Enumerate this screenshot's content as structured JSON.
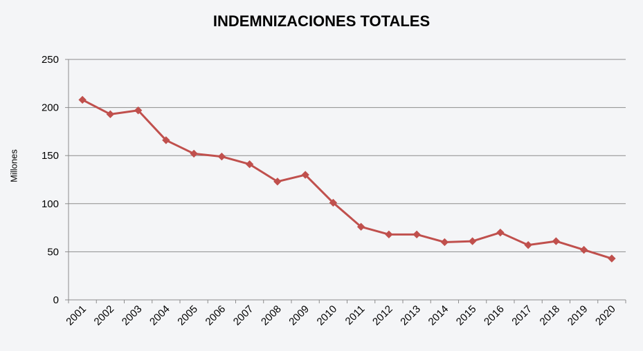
{
  "chart_data": {
    "type": "line",
    "title": "INDEMNIZACIONES TOTALES",
    "xlabel": "",
    "ylabel": "Millones",
    "ylim": [
      0,
      250
    ],
    "yticks": [
      0,
      50,
      100,
      150,
      200,
      250
    ],
    "grid": true,
    "legend": "none",
    "categories": [
      "2001",
      "2002",
      "2003",
      "2004",
      "2005",
      "2006",
      "2007",
      "2008",
      "2009",
      "2010",
      "2011",
      "2012",
      "2013",
      "2014",
      "2015",
      "2016",
      "2017",
      "2018",
      "2019",
      "2020"
    ],
    "series": [
      {
        "values": [
          208,
          193,
          197,
          166,
          152,
          149,
          141,
          123,
          130,
          101,
          76,
          68,
          68,
          60,
          61,
          70,
          57,
          61,
          52,
          43
        ],
        "color": "#c0504d",
        "marker": "diamond"
      }
    ]
  }
}
